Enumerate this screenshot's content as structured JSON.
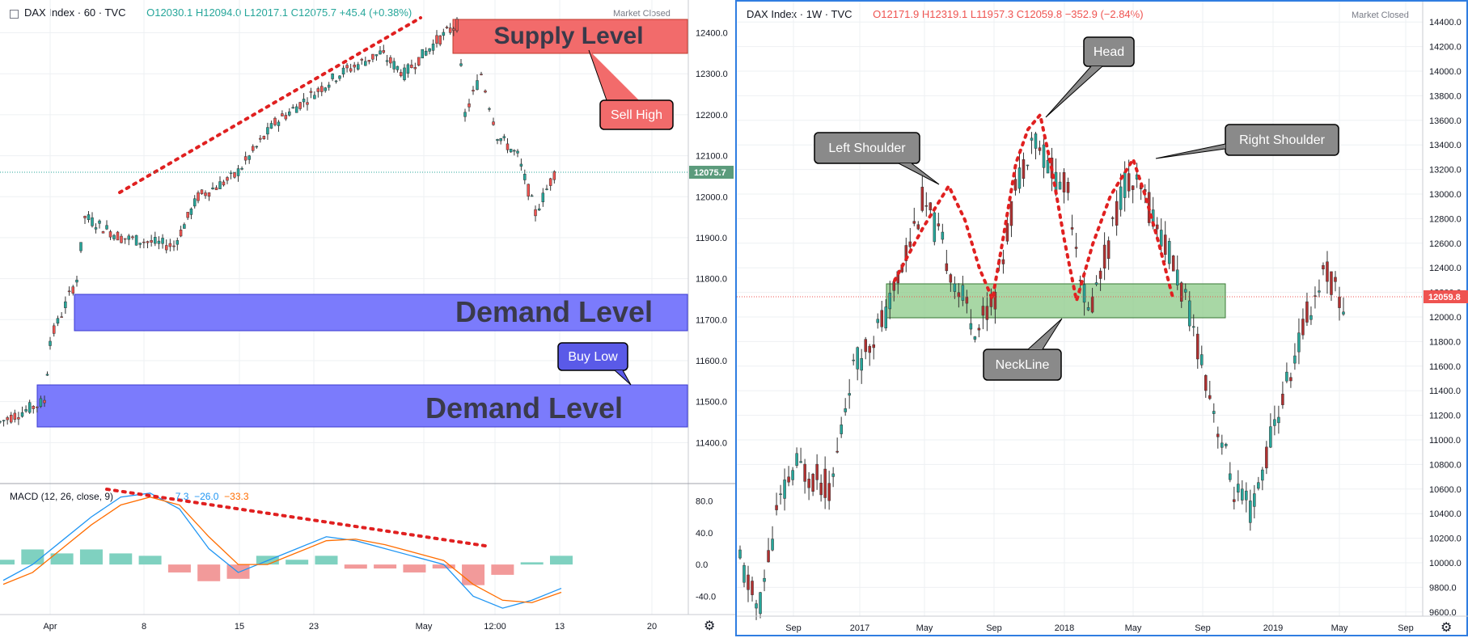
{
  "left_chart": {
    "symbol_label": "DAX Index · 60 · TVC",
    "ohlc": "O12030.1  H12094.0  L12017.1  C12075.7  +45.4 (+0.38%)",
    "status": "Market Closed",
    "price_tag": "12075.7",
    "supply_label": "Supply Level",
    "demand_label_1": "Demand Level",
    "demand_label_2": "Demand Level",
    "callout_sell": "Sell High",
    "callout_buy": "Buy Low",
    "macd_legend_name": "MACD (12, 26, close, 9)",
    "macd_v1": "7.3",
    "macd_v2": "−26.0",
    "macd_v3": "−33.3",
    "accent_up": "#26a69a",
    "accent_down": "#ef5350"
  },
  "right_chart": {
    "symbol_label": "DAX Index · 1W · TVC",
    "ohlc": "O12171.9  H12319.1  L11957.3  C12059.8  −352.9 (−2.84%)",
    "status": "Market Closed",
    "price_tag": "12059.8",
    "callout_head": "Head",
    "callout_left": "Left Shoulder",
    "callout_right": "Right Shoulder",
    "callout_neck": "NeckLine"
  },
  "chart_data": [
    {
      "type": "line",
      "series": [
        {
          "values": [
            11450,
            11500,
            11650,
            11800,
            11950,
            11900,
            11880,
            12000,
            12050,
            12180,
            12300,
            12350,
            12300,
            12380,
            12420,
            12200,
            12300,
            12150,
            12100,
            11960,
            12075.7
          ]
        }
      ],
      "x_ticks": [
        "Apr",
        "8",
        "15",
        "23",
        "May",
        "12:00",
        "13",
        "20"
      ],
      "y_ticks": [
        11400,
        11500,
        11600,
        11700,
        11800,
        11900,
        12000,
        12100,
        12200,
        12300,
        12400
      ],
      "ylim": [
        11300,
        12480
      ],
      "zones": [
        {
          "label": "Supply Level",
          "from": 12370,
          "to": 12460
        },
        {
          "label": "Demand Level",
          "from": 11690,
          "to": 11780
        },
        {
          "label": "Demand Level",
          "from": 11445,
          "to": 11555
        }
      ],
      "macd": {
        "y_ticks": [
          80,
          40,
          0,
          -40
        ],
        "ylim": [
          -60,
          100
        ],
        "macd_line": [
          -20,
          0,
          30,
          60,
          85,
          90,
          70,
          20,
          -10,
          5,
          20,
          35,
          30,
          20,
          10,
          0,
          -40,
          -55,
          -45,
          -30
        ],
        "signal_line": [
          -25,
          -10,
          20,
          50,
          75,
          85,
          75,
          35,
          0,
          0,
          15,
          30,
          32,
          25,
          15,
          5,
          -25,
          -45,
          -48,
          -35
        ]
      }
    },
    {
      "type": "line",
      "series": [
        {
          "values": [
            10000,
            9600,
            10400,
            10800,
            10700,
            10600,
            11500,
            11800,
            12000,
            12500,
            12950,
            12600,
            12200,
            11900,
            12200,
            13000,
            13500,
            13200,
            13000,
            12000,
            12500,
            13100,
            13000,
            12700,
            12300,
            11800,
            11200,
            10600,
            10400,
            11000,
            11500,
            12000,
            12400,
            12059.8
          ]
        }
      ],
      "x_ticks": [
        "Sep",
        "2017",
        "May",
        "Sep",
        "2018",
        "May",
        "Sep",
        "2019",
        "May",
        "Sep"
      ],
      "y_ticks": [
        9600,
        9800,
        10000,
        10200,
        10400,
        10600,
        10800,
        11000,
        11200,
        11400,
        11600,
        11800,
        12000,
        12200,
        12400,
        12600,
        12800,
        13000,
        13200,
        13400,
        13600,
        13800,
        14000,
        14200,
        14400
      ],
      "ylim": [
        9500,
        14500
      ],
      "zones": [
        {
          "label": "NeckLine",
          "from": 11880,
          "to": 12180
        }
      ]
    }
  ]
}
